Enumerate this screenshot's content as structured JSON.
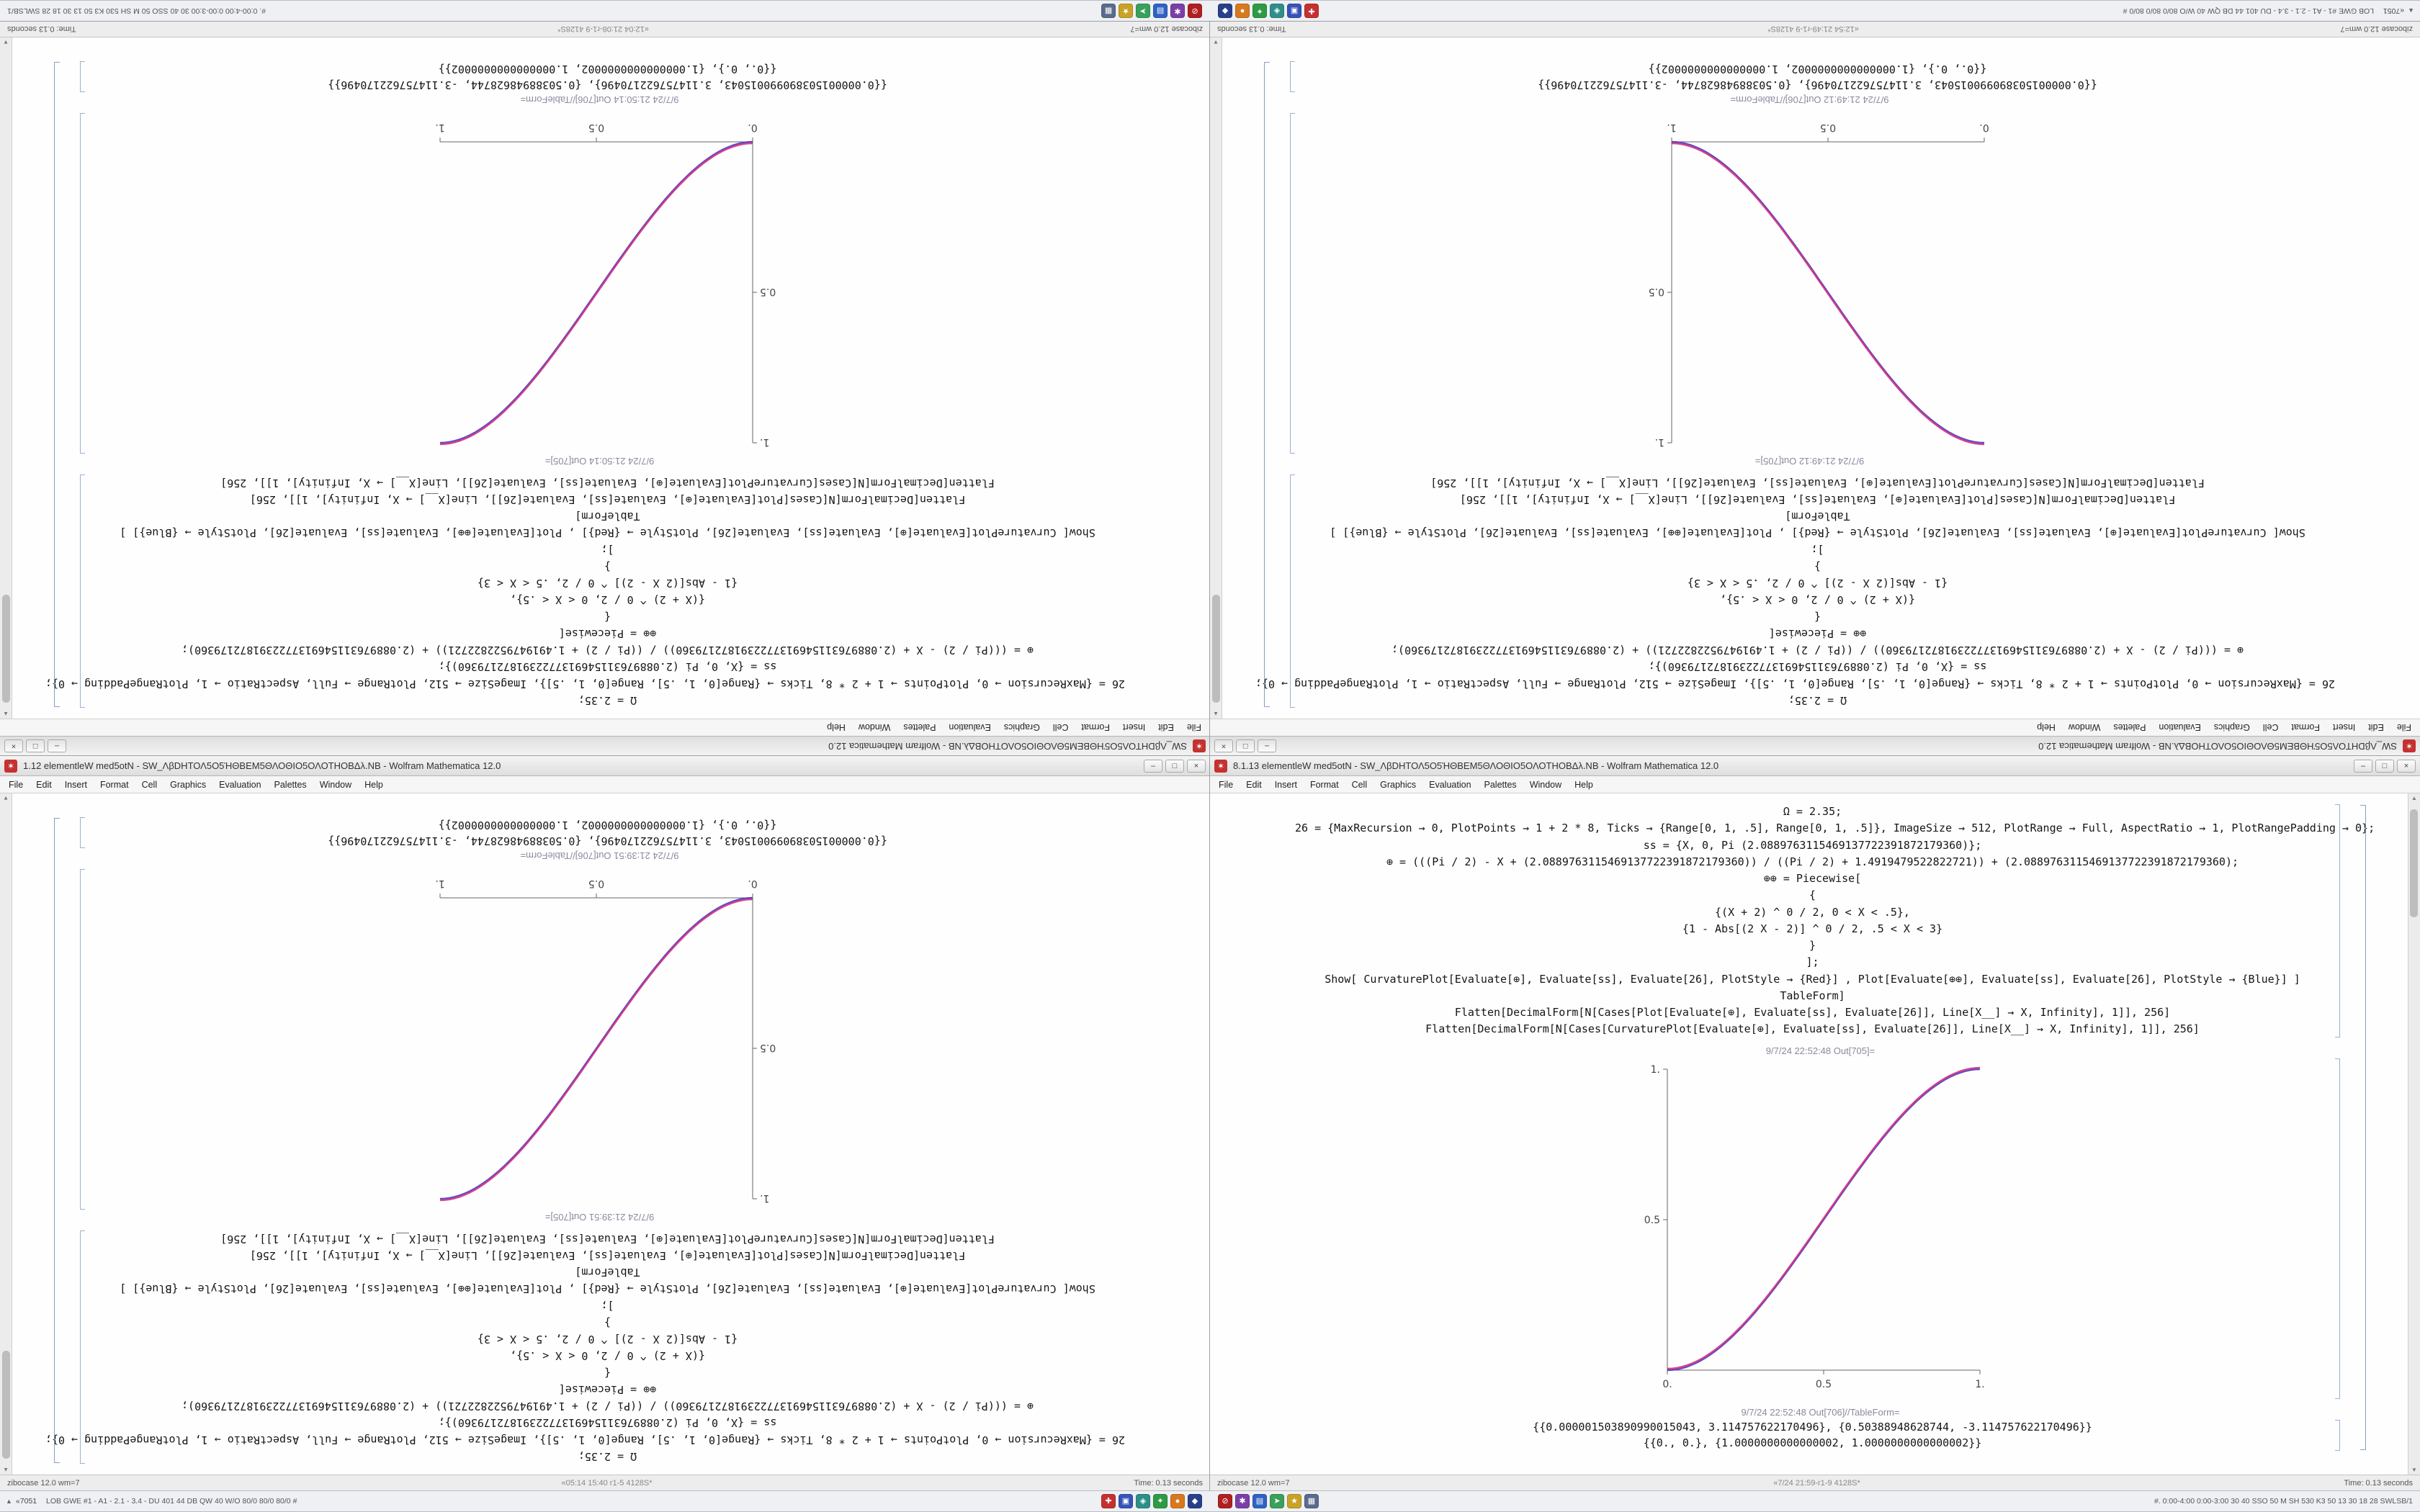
{
  "desktop": {
    "taskbar": {
      "start_glyph": "▲",
      "start_text": "«7051",
      "left_text": "LOB GWE #1 - A1 - 2.1 - 3.4 - DU 401 44 DB QW 40 W/O 80/0 80/0 80/0 #",
      "right_text": "#. 0:00-4:00 0:00-3:00 30 40 SSO 50 M SH 530 K3 50 13 30 18 28 SWLSB/1",
      "icons_group1": [
        {
          "name": "tray-icon-red-shield",
          "color": "#c5312f",
          "glyph": "✚"
        },
        {
          "name": "tray-icon-blue-app",
          "color": "#3653b8",
          "glyph": "▣"
        },
        {
          "name": "tray-icon-teal-app",
          "color": "#2e8f8a",
          "glyph": "◈"
        },
        {
          "name": "tray-icon-green-app",
          "color": "#2f9a44",
          "glyph": "✦"
        },
        {
          "name": "tray-icon-orange-app",
          "color": "#d8791f",
          "glyph": "●"
        },
        {
          "name": "tray-icon-navy-app",
          "color": "#27408b",
          "glyph": "◆"
        }
      ],
      "icons_group2": [
        {
          "name": "tray-icon-red-app",
          "color": "#b02020",
          "glyph": "⊘"
        },
        {
          "name": "tray-icon-violet-app",
          "color": "#7a3fa8",
          "glyph": "✱"
        },
        {
          "name": "tray-icon-blue2-app",
          "color": "#2f62c4",
          "glyph": "▤"
        },
        {
          "name": "tray-icon-green2-app",
          "color": "#3aa05a",
          "glyph": "➤"
        },
        {
          "name": "tray-icon-gold-app",
          "color": "#c9a227",
          "glyph": "★"
        },
        {
          "name": "tray-icon-slate-app",
          "color": "#5a6b8c",
          "glyph": "▦"
        }
      ]
    }
  },
  "chrome": {
    "app_icon_glyph": "✶",
    "menu_items": [
      "File",
      "Edit",
      "Insert",
      "Format",
      "Cell",
      "Graphics",
      "Evaluation",
      "Palettes",
      "Window",
      "Help"
    ],
    "buttons": {
      "min": "–",
      "max": "□",
      "close": "×"
    }
  },
  "shared": {
    "status_left": "zibocase 12.0 wm=7",
    "status_right": "Time: 0.13 seconds",
    "cells": [
      "Ω = 2.35;",
      "26 = {MaxRecursion → 0, PlotPoints → 1 + 2 * 8, Ticks → {Range[0, 1, .5], Range[0, 1, .5]}, ImageSize → 512, PlotRange → Full, AspectRatio → 1, PlotRangePadding → 0};",
      "ss = {X, 0, Pi (2.0889763115469137722391872179360)};",
      "⊕ = (((Pi / 2) - X + (2.0889763115469137722391872179360)) / ((Pi / 2) + 1.4919479522822721)) + (2.0889763115469137722391872179360);",
      "⊕⊕ = Piecewise[",
      "{",
      "{(X + 2) ^ 0 / 2, 0 < X < .5},",
      "{1 - Abs[(2 X - 2)] ^ 0 / 2, .5 < X < 3}",
      "}",
      "];",
      "Show[  CurvaturePlot[Evaluate[⊕], Evaluate[ss], Evaluate[26], PlotStyle → {Red}] ,  Plot[Evaluate[⊕⊕], Evaluate[ss], Evaluate[26], PlotStyle → {Blue}] ]",
      "TableForm]",
      "Flatten[DecimalForm[N[Cases[Plot[Evaluate[⊕], Evaluate[ss], Evaluate[26]], Line[X__] → X, Infinity], 1]], 256]",
      "Flatten[DecimalForm[N[Cases[CurvaturePlot[Evaluate[⊕], Evaluate[ss], Evaluate[26]], Line[X__] → X, Infinity], 1]], 256]"
    ],
    "table_lines": [
      "{{0.000001503890990015043, 3.114757622170496}, {0.50388948628744, -3.114757622170496}}",
      "{{0., 0.}, {1.0000000000000002, 1.0000000000000002}}"
    ]
  },
  "windows": [
    {
      "title": "SW_ΛβDΗΤΟΛ5Ο5ΉΘΒΕΜ5ΘΛΟΘΙΟ5ΟΛΟΤΗΟΒΔλ.ΝΒ - Wolfram Mathematica 12.0",
      "status_center": "«12:04 21:08-r1-9 4128S*",
      "out1_label": "9/7/24 21:50:14 Out[705]=",
      "out2_label": "9/7/24 21:50:14 Out[706]//TableForm=",
      "plot": {
        "direction": "up",
        "y_axis": "left",
        "x_ticks": [
          {
            "v": 0,
            "label": "0."
          },
          {
            "v": 0.5,
            "label": "0.5"
          },
          {
            "v": 1,
            "label": "1."
          }
        ],
        "y_ticks": [
          {
            "v": 0.5,
            "label": "0.5"
          },
          {
            "v": 1,
            "label": "1."
          }
        ],
        "colors": [
          "#4a3bc8",
          "#d4317c"
        ]
      }
    },
    {
      "title": "SW_ΛβDΗΤΟΛ5Ο5ΉΘΒΕΜ5ΘΛΟΘΙΟ5ΟΛΟΤΗΟΒΔλ.ΝΒ - Wolfram Mathematica 12.0",
      "status_center": "«12:54 21:49-r1-9 4128S*",
      "out1_label": "9/7/24 21:49:12 Out[705]=",
      "out2_label": "9/7/24 21:49:12 Out[706]//TableForm=",
      "plot": {
        "direction": "down",
        "y_axis": "right",
        "x_ticks": [
          {
            "v": 0,
            "label": "0."
          },
          {
            "v": 0.5,
            "label": "0.5"
          },
          {
            "v": 1,
            "label": "1."
          }
        ],
        "y_ticks": [
          {
            "v": 0.5,
            "label": "0.5"
          },
          {
            "v": 1,
            "label": "1."
          }
        ],
        "colors": [
          "#4a3bc8",
          "#d4317c"
        ]
      }
    },
    {
      "title": "1.12 elementleW med5otN - SW_ΛβDΗΤΟΛ5Ο5ΉΘΒΕΜ5ΘΛΟΘΙΟ5ΟΛΟΤΗΟΒΔλ.ΝΒ - Wolfram Mathematica 12.0",
      "status_center": "«05:14 15:40 r1-5 4128S*",
      "out1_label": "9/7/24 21:39:51 Out[705]=",
      "out2_label": "9/7/24 21:39:51 Out[706]//TableForm=",
      "plot": {
        "direction": "up",
        "y_axis": "left",
        "x_ticks": [
          {
            "v": 0,
            "label": "0."
          },
          {
            "v": 0.5,
            "label": "0.5"
          },
          {
            "v": 1,
            "label": "1."
          }
        ],
        "y_ticks": [
          {
            "v": 0.5,
            "label": "0.5"
          },
          {
            "v": 1,
            "label": "1."
          }
        ],
        "colors": [
          "#4a3bc8",
          "#d4317c"
        ]
      }
    },
    {
      "title": "8.1.13 elementleW med5otN - SW_ΛβDΗΤΟΛ5Ο5ΉΘΒΕΜ5ΘΛΟΘΙΟ5ΟΛΟΤΗΟΒΔλ.ΝΒ - Wolfram Mathematica 12.0",
      "status_center": "«7/24 21:59-r1-9 4128S*",
      "out1_label": "9/7/24 22:52:48 Out[705]=",
      "out2_label": "9/7/24 22:52:48 Out[706]//TableForm=",
      "plot": {
        "direction": "up",
        "y_axis": "left",
        "x_ticks": [
          {
            "v": 0,
            "label": "0."
          },
          {
            "v": 0.5,
            "label": "0.5"
          },
          {
            "v": 1,
            "label": "1."
          }
        ],
        "y_ticks": [
          {
            "v": 0.5,
            "label": "0.5"
          },
          {
            "v": 1,
            "label": "1."
          }
        ],
        "colors": [
          "#4a3bc8",
          "#d4317c"
        ]
      }
    }
  ],
  "chart_data": [
    {
      "type": "line",
      "window": "top-left",
      "title": "Out[705]=",
      "xlabel": "",
      "ylabel": "",
      "x": [
        0,
        0.1,
        0.2,
        0.3,
        0.4,
        0.5,
        0.6,
        0.7,
        0.8,
        0.9,
        1
      ],
      "series": [
        {
          "name": "CurvaturePlot (Red) + Plot (Blue)",
          "values": [
            0,
            0.028,
            0.104,
            0.216,
            0.352,
            0.5,
            0.648,
            0.784,
            0.896,
            0.972,
            1
          ]
        }
      ],
      "xlim": [
        0,
        1
      ],
      "ylim": [
        0,
        1
      ],
      "x_ticks": [
        "0.",
        "0.5",
        "1."
      ],
      "y_ticks": [
        "0.5",
        "1."
      ],
      "axis_side": "left"
    },
    {
      "type": "line",
      "window": "top-right",
      "title": "Out[705]=",
      "xlabel": "",
      "ylabel": "",
      "x": [
        0,
        0.1,
        0.2,
        0.3,
        0.4,
        0.5,
        0.6,
        0.7,
        0.8,
        0.9,
        1
      ],
      "series": [
        {
          "name": "CurvaturePlot (Red) + Plot (Blue)",
          "values": [
            1,
            0.972,
            0.896,
            0.784,
            0.648,
            0.5,
            0.352,
            0.216,
            0.104,
            0.028,
            0
          ]
        }
      ],
      "xlim": [
        0,
        1
      ],
      "ylim": [
        0,
        1
      ],
      "x_ticks": [
        "0.",
        "0.5",
        "1."
      ],
      "y_ticks": [
        "0.5",
        "1."
      ],
      "axis_side": "right"
    },
    {
      "type": "line",
      "window": "bottom-left",
      "title": "Out[705]=",
      "xlabel": "",
      "ylabel": "",
      "x": [
        0,
        0.1,
        0.2,
        0.3,
        0.4,
        0.5,
        0.6,
        0.7,
        0.8,
        0.9,
        1
      ],
      "series": [
        {
          "name": "CurvaturePlot (Red) + Plot (Blue)",
          "values": [
            0,
            0.028,
            0.104,
            0.216,
            0.352,
            0.5,
            0.648,
            0.784,
            0.896,
            0.972,
            1
          ]
        }
      ],
      "xlim": [
        0,
        1
      ],
      "ylim": [
        0,
        1
      ],
      "x_ticks": [
        "0.",
        "0.5",
        "1."
      ],
      "y_ticks": [
        "0.5",
        "1."
      ],
      "axis_side": "left"
    },
    {
      "type": "line",
      "window": "bottom-right",
      "title": "Out[705]=",
      "xlabel": "",
      "ylabel": "",
      "x": [
        0,
        0.1,
        0.2,
        0.3,
        0.4,
        0.5,
        0.6,
        0.7,
        0.8,
        0.9,
        1
      ],
      "series": [
        {
          "name": "CurvaturePlot (Red) + Plot (Blue)",
          "values": [
            0,
            0.028,
            0.104,
            0.216,
            0.352,
            0.5,
            0.648,
            0.784,
            0.896,
            0.972,
            1
          ]
        }
      ],
      "xlim": [
        0,
        1
      ],
      "ylim": [
        0,
        1
      ],
      "x_ticks": [
        "0.",
        "0.5",
        "1."
      ],
      "y_ticks": [
        "0.5",
        "1."
      ],
      "axis_side": "left"
    }
  ]
}
